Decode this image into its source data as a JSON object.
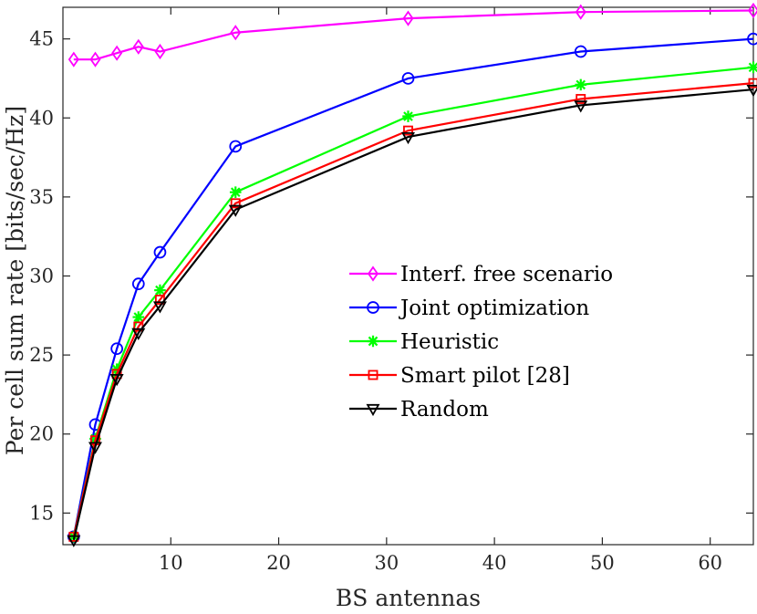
{
  "chart_data": {
    "type": "line",
    "title": "",
    "xlabel": "BS antennas",
    "ylabel": "Per cell sum rate [bits/sec/Hz]",
    "xlim": [
      0,
      64
    ],
    "ylim": [
      13,
      47
    ],
    "xticks": [
      10,
      20,
      30,
      40,
      50,
      60
    ],
    "yticks": [
      15,
      20,
      25,
      30,
      35,
      40,
      45
    ],
    "x": [
      1,
      3,
      5,
      7,
      9,
      16,
      32,
      48,
      64
    ],
    "legend_position": "center-right",
    "series": [
      {
        "name": "Interf. free scenario",
        "color": "#ff00ff",
        "marker": "diamond",
        "values": [
          43.7,
          43.7,
          44.1,
          44.5,
          44.2,
          45.4,
          46.3,
          46.7,
          46.8
        ]
      },
      {
        "name": "Joint optimization",
        "color": "#0000ff",
        "marker": "circle",
        "values": [
          13.5,
          20.6,
          25.4,
          29.5,
          31.5,
          38.2,
          42.5,
          44.2,
          45.0
        ]
      },
      {
        "name": "Heuristic",
        "color": "#00ff00",
        "marker": "asterisk",
        "values": [
          13.5,
          19.7,
          24.1,
          27.4,
          29.1,
          35.3,
          40.1,
          42.1,
          43.2
        ]
      },
      {
        "name": "Smart pilot [28]",
        "color": "#ff0000",
        "marker": "square",
        "values": [
          13.5,
          19.6,
          23.8,
          26.8,
          28.5,
          34.6,
          39.2,
          41.2,
          42.2
        ]
      },
      {
        "name": "Random",
        "color": "#000000",
        "marker": "triangle-down",
        "values": [
          13.3,
          19.2,
          23.5,
          26.4,
          28.1,
          34.2,
          38.8,
          40.8,
          41.8
        ]
      }
    ]
  }
}
